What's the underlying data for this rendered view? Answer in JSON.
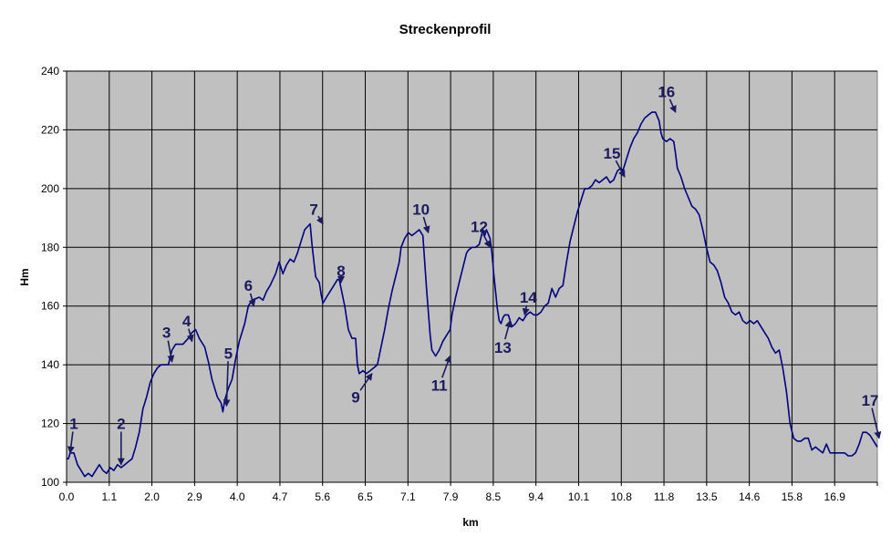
{
  "chart_data": {
    "type": "line",
    "title": "Streckenprofil",
    "xlabel": "km",
    "ylabel": "Hm",
    "ylim": [
      100,
      240
    ],
    "yticks": [
      100,
      120,
      140,
      160,
      180,
      200,
      220,
      240
    ],
    "x_tick_labels": [
      "0.0",
      "1.1",
      "2.0",
      "2.9",
      "4.0",
      "4.7",
      "5.6",
      "6.5",
      "7.1",
      "7.9",
      "8.5",
      "9.4",
      "10.1",
      "10.8",
      "11.8",
      "13.5",
      "14.6",
      "15.8",
      "16.9"
    ],
    "grid": true,
    "plot_background": "#c0c0c0",
    "line_color": "#000080",
    "annotation_color": "#1b1b5e",
    "series": [
      {
        "values": [
          [
            0.0,
            108
          ],
          [
            0.05,
            108
          ],
          [
            0.1,
            110
          ],
          [
            0.2,
            110
          ],
          [
            0.3,
            106
          ],
          [
            0.4,
            104
          ],
          [
            0.5,
            102
          ],
          [
            0.6,
            103
          ],
          [
            0.7,
            102
          ],
          [
            0.8,
            104
          ],
          [
            0.9,
            106
          ],
          [
            1.0,
            104
          ],
          [
            1.1,
            103
          ],
          [
            1.2,
            105
          ],
          [
            1.3,
            104
          ],
          [
            1.4,
            106
          ],
          [
            1.5,
            105
          ],
          [
            1.6,
            106
          ],
          [
            1.7,
            107
          ],
          [
            1.8,
            108
          ],
          [
            1.9,
            112
          ],
          [
            2.0,
            117
          ],
          [
            2.1,
            125
          ],
          [
            2.2,
            129
          ],
          [
            2.3,
            134
          ],
          [
            2.4,
            137
          ],
          [
            2.5,
            139
          ],
          [
            2.6,
            140
          ],
          [
            2.8,
            140
          ],
          [
            2.9,
            145
          ],
          [
            3.0,
            147
          ],
          [
            3.2,
            147
          ],
          [
            3.35,
            149
          ],
          [
            3.45,
            151
          ],
          [
            3.55,
            152
          ],
          [
            3.65,
            149
          ],
          [
            3.8,
            146
          ],
          [
            3.9,
            141
          ],
          [
            4.0,
            135
          ],
          [
            4.1,
            131
          ],
          [
            4.15,
            129
          ],
          [
            4.25,
            127
          ],
          [
            4.3,
            124
          ],
          [
            4.35,
            128
          ],
          [
            4.45,
            132
          ],
          [
            4.55,
            135
          ],
          [
            4.65,
            142
          ],
          [
            4.75,
            148
          ],
          [
            4.9,
            154
          ],
          [
            5.0,
            160
          ],
          [
            5.1,
            162
          ],
          [
            5.3,
            163
          ],
          [
            5.4,
            162
          ],
          [
            5.5,
            165
          ],
          [
            5.6,
            167
          ],
          [
            5.75,
            171
          ],
          [
            5.85,
            175
          ],
          [
            5.95,
            171
          ],
          [
            6.05,
            174
          ],
          [
            6.15,
            176
          ],
          [
            6.25,
            175
          ],
          [
            6.35,
            178
          ],
          [
            6.45,
            182
          ],
          [
            6.55,
            186
          ],
          [
            6.7,
            188
          ],
          [
            6.75,
            181
          ],
          [
            6.85,
            170
          ],
          [
            6.95,
            168
          ],
          [
            7.0,
            164
          ],
          [
            7.05,
            161
          ],
          [
            7.15,
            163
          ],
          [
            7.25,
            165
          ],
          [
            7.35,
            167
          ],
          [
            7.45,
            169
          ],
          [
            7.5,
            169
          ],
          [
            7.55,
            166
          ],
          [
            7.65,
            160
          ],
          [
            7.75,
            152
          ],
          [
            7.85,
            149
          ],
          [
            7.95,
            149
          ],
          [
            8.0,
            140
          ],
          [
            8.05,
            137
          ],
          [
            8.15,
            138
          ],
          [
            8.25,
            137
          ],
          [
            8.35,
            138
          ],
          [
            8.45,
            139
          ],
          [
            8.55,
            140
          ],
          [
            8.65,
            146
          ],
          [
            8.75,
            152
          ],
          [
            8.85,
            159
          ],
          [
            8.95,
            165
          ],
          [
            9.05,
            170
          ],
          [
            9.15,
            175
          ],
          [
            9.2,
            180
          ],
          [
            9.3,
            183
          ],
          [
            9.4,
            185
          ],
          [
            9.5,
            184
          ],
          [
            9.6,
            185
          ],
          [
            9.7,
            186
          ],
          [
            9.8,
            184
          ],
          [
            9.85,
            175
          ],
          [
            9.9,
            166
          ],
          [
            9.95,
            158
          ],
          [
            10.0,
            150
          ],
          [
            10.05,
            145
          ],
          [
            10.15,
            143
          ],
          [
            10.25,
            145
          ],
          [
            10.35,
            148
          ],
          [
            10.45,
            150
          ],
          [
            10.55,
            152
          ],
          [
            10.6,
            157
          ],
          [
            10.7,
            163
          ],
          [
            10.8,
            168
          ],
          [
            10.9,
            173
          ],
          [
            11.0,
            178
          ],
          [
            11.05,
            179
          ],
          [
            11.15,
            180
          ],
          [
            11.25,
            180
          ],
          [
            11.35,
            181
          ],
          [
            11.45,
            186
          ],
          [
            11.5,
            184
          ],
          [
            11.55,
            186
          ],
          [
            11.65,
            183
          ],
          [
            11.7,
            178
          ],
          [
            11.75,
            171
          ],
          [
            11.8,
            165
          ],
          [
            11.85,
            159
          ],
          [
            11.9,
            155
          ],
          [
            11.95,
            154
          ],
          [
            12.0,
            156
          ],
          [
            12.05,
            157
          ],
          [
            12.15,
            157
          ],
          [
            12.25,
            153
          ],
          [
            12.35,
            154
          ],
          [
            12.45,
            156
          ],
          [
            12.55,
            155
          ],
          [
            12.65,
            157
          ],
          [
            12.75,
            158
          ],
          [
            12.85,
            157
          ],
          [
            12.95,
            157
          ],
          [
            13.05,
            158
          ],
          [
            13.15,
            160
          ],
          [
            13.25,
            161
          ],
          [
            13.35,
            166
          ],
          [
            13.45,
            163
          ],
          [
            13.55,
            166
          ],
          [
            13.65,
            167
          ],
          [
            13.75,
            175
          ],
          [
            13.85,
            182
          ],
          [
            13.95,
            187
          ],
          [
            14.05,
            192
          ],
          [
            14.15,
            196
          ],
          [
            14.25,
            200
          ],
          [
            14.35,
            200
          ],
          [
            14.45,
            201
          ],
          [
            14.55,
            203
          ],
          [
            14.65,
            202
          ],
          [
            14.75,
            203
          ],
          [
            14.85,
            204
          ],
          [
            14.95,
            202
          ],
          [
            15.05,
            203
          ],
          [
            15.15,
            206
          ],
          [
            15.25,
            207
          ],
          [
            15.3,
            206
          ],
          [
            15.4,
            210
          ],
          [
            15.5,
            214
          ],
          [
            15.6,
            217
          ],
          [
            15.7,
            219
          ],
          [
            15.8,
            222
          ],
          [
            15.9,
            224
          ],
          [
            16.0,
            225
          ],
          [
            16.1,
            226
          ],
          [
            16.2,
            226
          ],
          [
            16.3,
            223
          ],
          [
            16.35,
            219
          ],
          [
            16.4,
            217
          ],
          [
            16.5,
            216
          ],
          [
            16.6,
            217
          ],
          [
            16.7,
            216
          ],
          [
            16.75,
            212
          ],
          [
            16.8,
            207
          ],
          [
            16.9,
            204
          ],
          [
            17.0,
            200
          ],
          [
            17.1,
            197
          ],
          [
            17.2,
            194
          ],
          [
            17.3,
            193
          ],
          [
            17.4,
            191
          ],
          [
            17.5,
            186
          ],
          [
            17.6,
            180
          ],
          [
            17.7,
            175
          ],
          [
            17.8,
            174
          ],
          [
            17.9,
            172
          ],
          [
            18.0,
            168
          ],
          [
            18.1,
            163
          ],
          [
            18.2,
            161
          ],
          [
            18.3,
            158
          ],
          [
            18.4,
            157
          ],
          [
            18.5,
            158
          ],
          [
            18.6,
            155
          ],
          [
            18.7,
            154
          ],
          [
            18.8,
            155
          ],
          [
            18.9,
            154
          ],
          [
            19.0,
            155
          ],
          [
            19.1,
            153
          ],
          [
            19.2,
            151
          ],
          [
            19.3,
            149
          ],
          [
            19.4,
            146
          ],
          [
            19.5,
            144
          ],
          [
            19.6,
            145
          ],
          [
            19.7,
            139
          ],
          [
            19.8,
            131
          ],
          [
            19.9,
            120
          ],
          [
            20.0,
            115
          ],
          [
            20.1,
            114
          ],
          [
            20.2,
            114
          ],
          [
            20.3,
            115
          ],
          [
            20.4,
            115
          ],
          [
            20.5,
            111
          ],
          [
            20.6,
            112
          ],
          [
            20.7,
            111
          ],
          [
            20.8,
            110
          ],
          [
            20.9,
            113
          ],
          [
            21.0,
            110
          ],
          [
            21.1,
            110
          ],
          [
            21.3,
            110
          ],
          [
            21.4,
            110
          ],
          [
            21.5,
            109
          ],
          [
            21.6,
            109
          ],
          [
            21.7,
            110
          ],
          [
            21.8,
            113
          ],
          [
            21.9,
            117
          ],
          [
            22.0,
            117
          ],
          [
            22.1,
            116
          ],
          [
            22.2,
            114
          ],
          [
            22.3,
            112
          ]
        ]
      }
    ],
    "annotations": [
      {
        "label": "1",
        "label_at": [
          0.2,
          120
        ],
        "arrow_to": [
          0.1,
          110
        ]
      },
      {
        "label": "2",
        "label_at": [
          1.5,
          120
        ],
        "arrow_to": [
          1.5,
          106
        ]
      },
      {
        "label": "3",
        "label_at": [
          2.75,
          151
        ],
        "arrow_to": [
          2.9,
          141
        ]
      },
      {
        "label": "4",
        "label_at": [
          3.3,
          155
        ],
        "arrow_to": [
          3.45,
          148
        ]
      },
      {
        "label": "5",
        "label_at": [
          4.45,
          144
        ],
        "arrow_to": [
          4.4,
          126
        ]
      },
      {
        "label": "6",
        "label_at": [
          5.0,
          167
        ],
        "arrow_to": [
          5.15,
          160
        ]
      },
      {
        "label": "7",
        "label_at": [
          6.8,
          193
        ],
        "arrow_to": [
          7.05,
          188
        ]
      },
      {
        "label": "8",
        "label_at": [
          7.55,
          172
        ],
        "arrow_to": [
          7.55,
          168
        ]
      },
      {
        "label": "9",
        "label_at": [
          7.95,
          129
        ],
        "arrow_to": [
          8.4,
          137
        ]
      },
      {
        "label": "10",
        "label_at": [
          9.75,
          193
        ],
        "arrow_to": [
          9.95,
          185
        ]
      },
      {
        "label": "11",
        "label_at": [
          10.25,
          133
        ],
        "arrow_to": [
          10.55,
          143
        ]
      },
      {
        "label": "12",
        "label_at": [
          11.35,
          187
        ],
        "arrow_to": [
          11.65,
          180
        ]
      },
      {
        "label": "13",
        "label_at": [
          12.0,
          146
        ],
        "arrow_to": [
          12.2,
          155
        ]
      },
      {
        "label": "14",
        "label_at": [
          12.7,
          163
        ],
        "arrow_to": [
          12.6,
          157
        ]
      },
      {
        "label": "15",
        "label_at": [
          15.0,
          212
        ],
        "arrow_to": [
          15.35,
          204
        ]
      },
      {
        "label": "16",
        "label_at": [
          16.5,
          233
        ],
        "arrow_to": [
          16.75,
          226
        ]
      },
      {
        "label": "17",
        "label_at": [
          22.1,
          128
        ],
        "arrow_to": [
          22.35,
          115
        ]
      }
    ]
  }
}
